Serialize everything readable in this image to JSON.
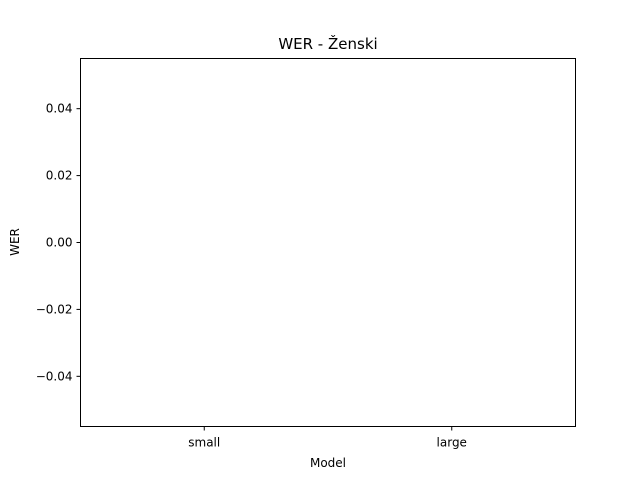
{
  "chart_data": {
    "type": "bar",
    "title": "WER - Ženski",
    "xlabel": "Model",
    "ylabel": "WER",
    "categories": [
      "small",
      "large"
    ],
    "values": [
      0,
      0
    ],
    "ylim": [
      -0.055,
      0.055
    ],
    "yticks": [
      -0.04,
      -0.02,
      0.0,
      0.02,
      0.04
    ],
    "ytick_labels": [
      "−0.04",
      "−0.02",
      "0.00",
      "0.02",
      "0.04"
    ],
    "grid": false,
    "bar_color": "#1f77b4"
  }
}
